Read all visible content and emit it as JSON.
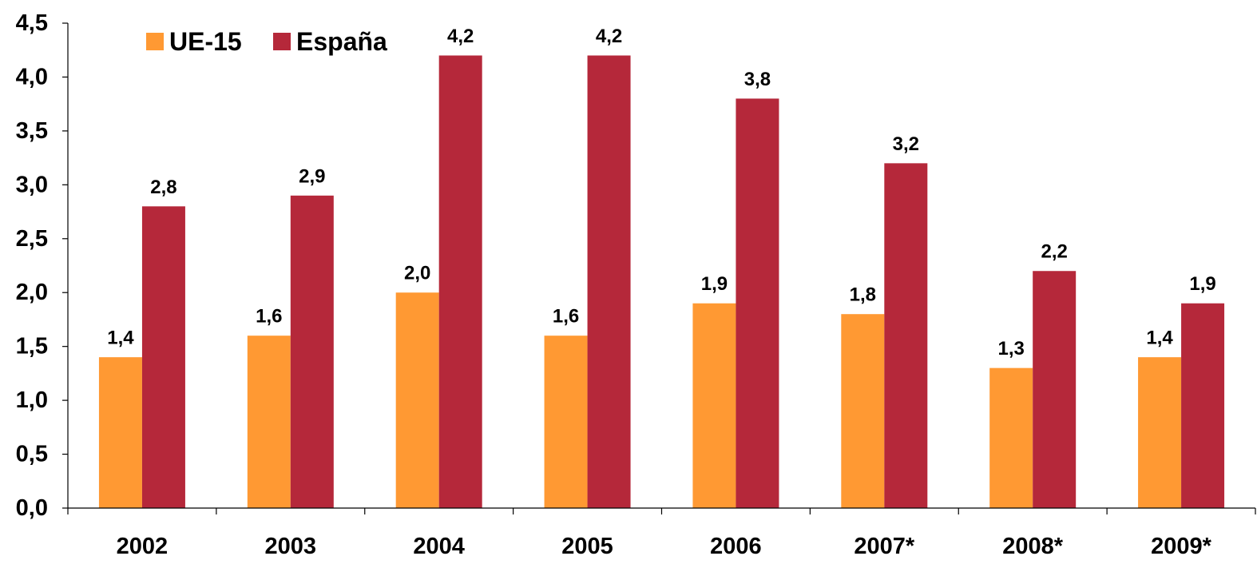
{
  "chart_data": {
    "type": "bar",
    "title": "",
    "xlabel": "",
    "ylabel": "",
    "categories": [
      "2002",
      "2003",
      "2004",
      "2005",
      "2006",
      "2007*",
      "2008*",
      "2009*"
    ],
    "series": [
      {
        "name": "UE-15",
        "color": "#FF9933",
        "values": [
          1.4,
          1.6,
          2.0,
          1.6,
          1.9,
          1.8,
          1.3,
          1.4
        ],
        "labels": [
          "1,4",
          "1,6",
          "2,0",
          "1,6",
          "1,9",
          "1,8",
          "1,3",
          "1,4"
        ]
      },
      {
        "name": "España",
        "color": "#B5283A",
        "values": [
          2.8,
          2.9,
          4.2,
          4.2,
          3.8,
          3.2,
          2.2,
          1.9
        ],
        "labels": [
          "2,8",
          "2,9",
          "4,2",
          "4,2",
          "3,8",
          "3,2",
          "2,2",
          "1,9"
        ]
      }
    ],
    "ylim": [
      0,
      4.5
    ],
    "yticks": [
      0,
      0.5,
      1.0,
      1.5,
      2.0,
      2.5,
      3.0,
      3.5,
      4.0,
      4.5
    ],
    "ytick_labels": [
      "0,0",
      "0,5",
      "1,0",
      "1,5",
      "2,0",
      "2,5",
      "3,0",
      "3,5",
      "4,0",
      "4,5"
    ],
    "grid": false,
    "legend_position": "top-left"
  }
}
